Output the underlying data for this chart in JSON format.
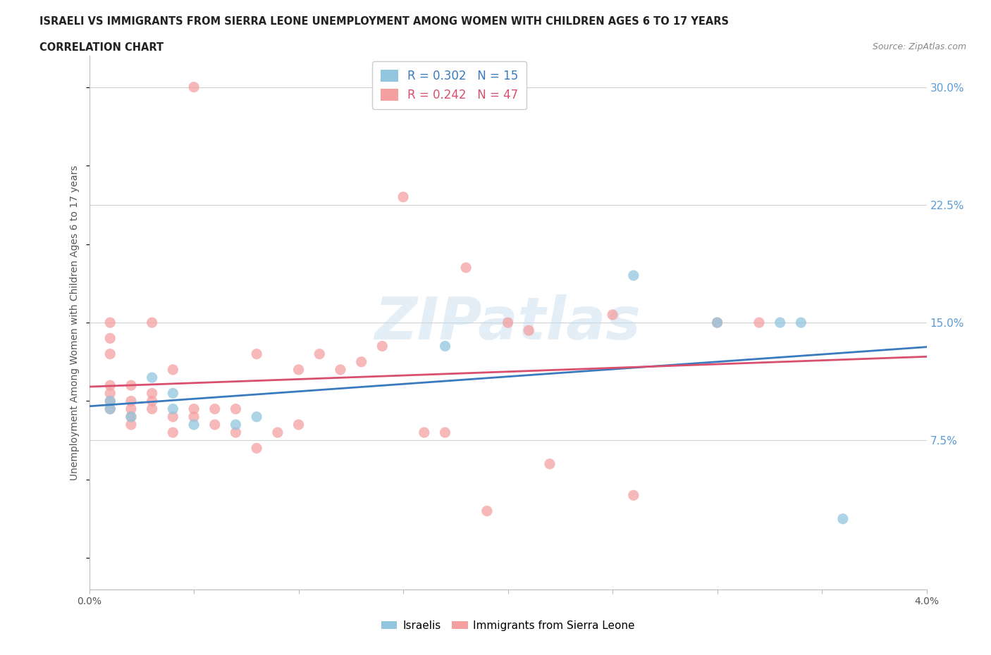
{
  "title_line1": "ISRAELI VS IMMIGRANTS FROM SIERRA LEONE UNEMPLOYMENT AMONG WOMEN WITH CHILDREN AGES 6 TO 17 YEARS",
  "title_line2": "CORRELATION CHART",
  "source_text": "Source: ZipAtlas.com",
  "ylabel": "Unemployment Among Women with Children Ages 6 to 17 years",
  "xlim": [
    0.0,
    0.04
  ],
  "ylim": [
    -0.02,
    0.32
  ],
  "xticks": [
    0.0,
    0.005,
    0.01,
    0.015,
    0.02,
    0.025,
    0.03,
    0.035,
    0.04
  ],
  "ytick_labels_right": [
    "7.5%",
    "15.0%",
    "22.5%",
    "30.0%"
  ],
  "yticks_right": [
    0.075,
    0.15,
    0.225,
    0.3
  ],
  "grid_color": "#d0d0d0",
  "background_color": "#ffffff",
  "watermark_text": "ZIPatlas",
  "legend_r1": "R = 0.302",
  "legend_n1": "N = 15",
  "legend_r2": "R = 0.242",
  "legend_n2": "N = 47",
  "color_israeli": "#92c5de",
  "color_sierraleone": "#f4a0a0",
  "trendline_color_israeli": "#3a7bbf",
  "trendline_color_sierraleone": "#d94f6e",
  "israelis_x": [
    0.001,
    0.001,
    0.002,
    0.003,
    0.004,
    0.004,
    0.005,
    0.007,
    0.008,
    0.017,
    0.026,
    0.03,
    0.033,
    0.034,
    0.036
  ],
  "israelis_y": [
    0.095,
    0.1,
    0.09,
    0.115,
    0.095,
    0.105,
    0.085,
    0.085,
    0.09,
    0.135,
    0.18,
    0.15,
    0.15,
    0.15,
    0.025
  ],
  "sierraleone_x": [
    0.001,
    0.001,
    0.001,
    0.001,
    0.001,
    0.001,
    0.001,
    0.002,
    0.002,
    0.002,
    0.002,
    0.002,
    0.003,
    0.003,
    0.003,
    0.003,
    0.004,
    0.004,
    0.004,
    0.005,
    0.005,
    0.005,
    0.006,
    0.006,
    0.007,
    0.007,
    0.008,
    0.008,
    0.009,
    0.01,
    0.01,
    0.011,
    0.012,
    0.013,
    0.014,
    0.015,
    0.016,
    0.017,
    0.018,
    0.019,
    0.02,
    0.021,
    0.022,
    0.025,
    0.026,
    0.03,
    0.032
  ],
  "sierraleone_y": [
    0.095,
    0.1,
    0.105,
    0.11,
    0.13,
    0.14,
    0.15,
    0.085,
    0.09,
    0.095,
    0.1,
    0.11,
    0.095,
    0.1,
    0.105,
    0.15,
    0.08,
    0.09,
    0.12,
    0.09,
    0.095,
    0.3,
    0.085,
    0.095,
    0.08,
    0.095,
    0.07,
    0.13,
    0.08,
    0.085,
    0.12,
    0.13,
    0.12,
    0.125,
    0.135,
    0.23,
    0.08,
    0.08,
    0.185,
    0.03,
    0.15,
    0.145,
    0.06,
    0.155,
    0.04,
    0.15,
    0.15
  ]
}
